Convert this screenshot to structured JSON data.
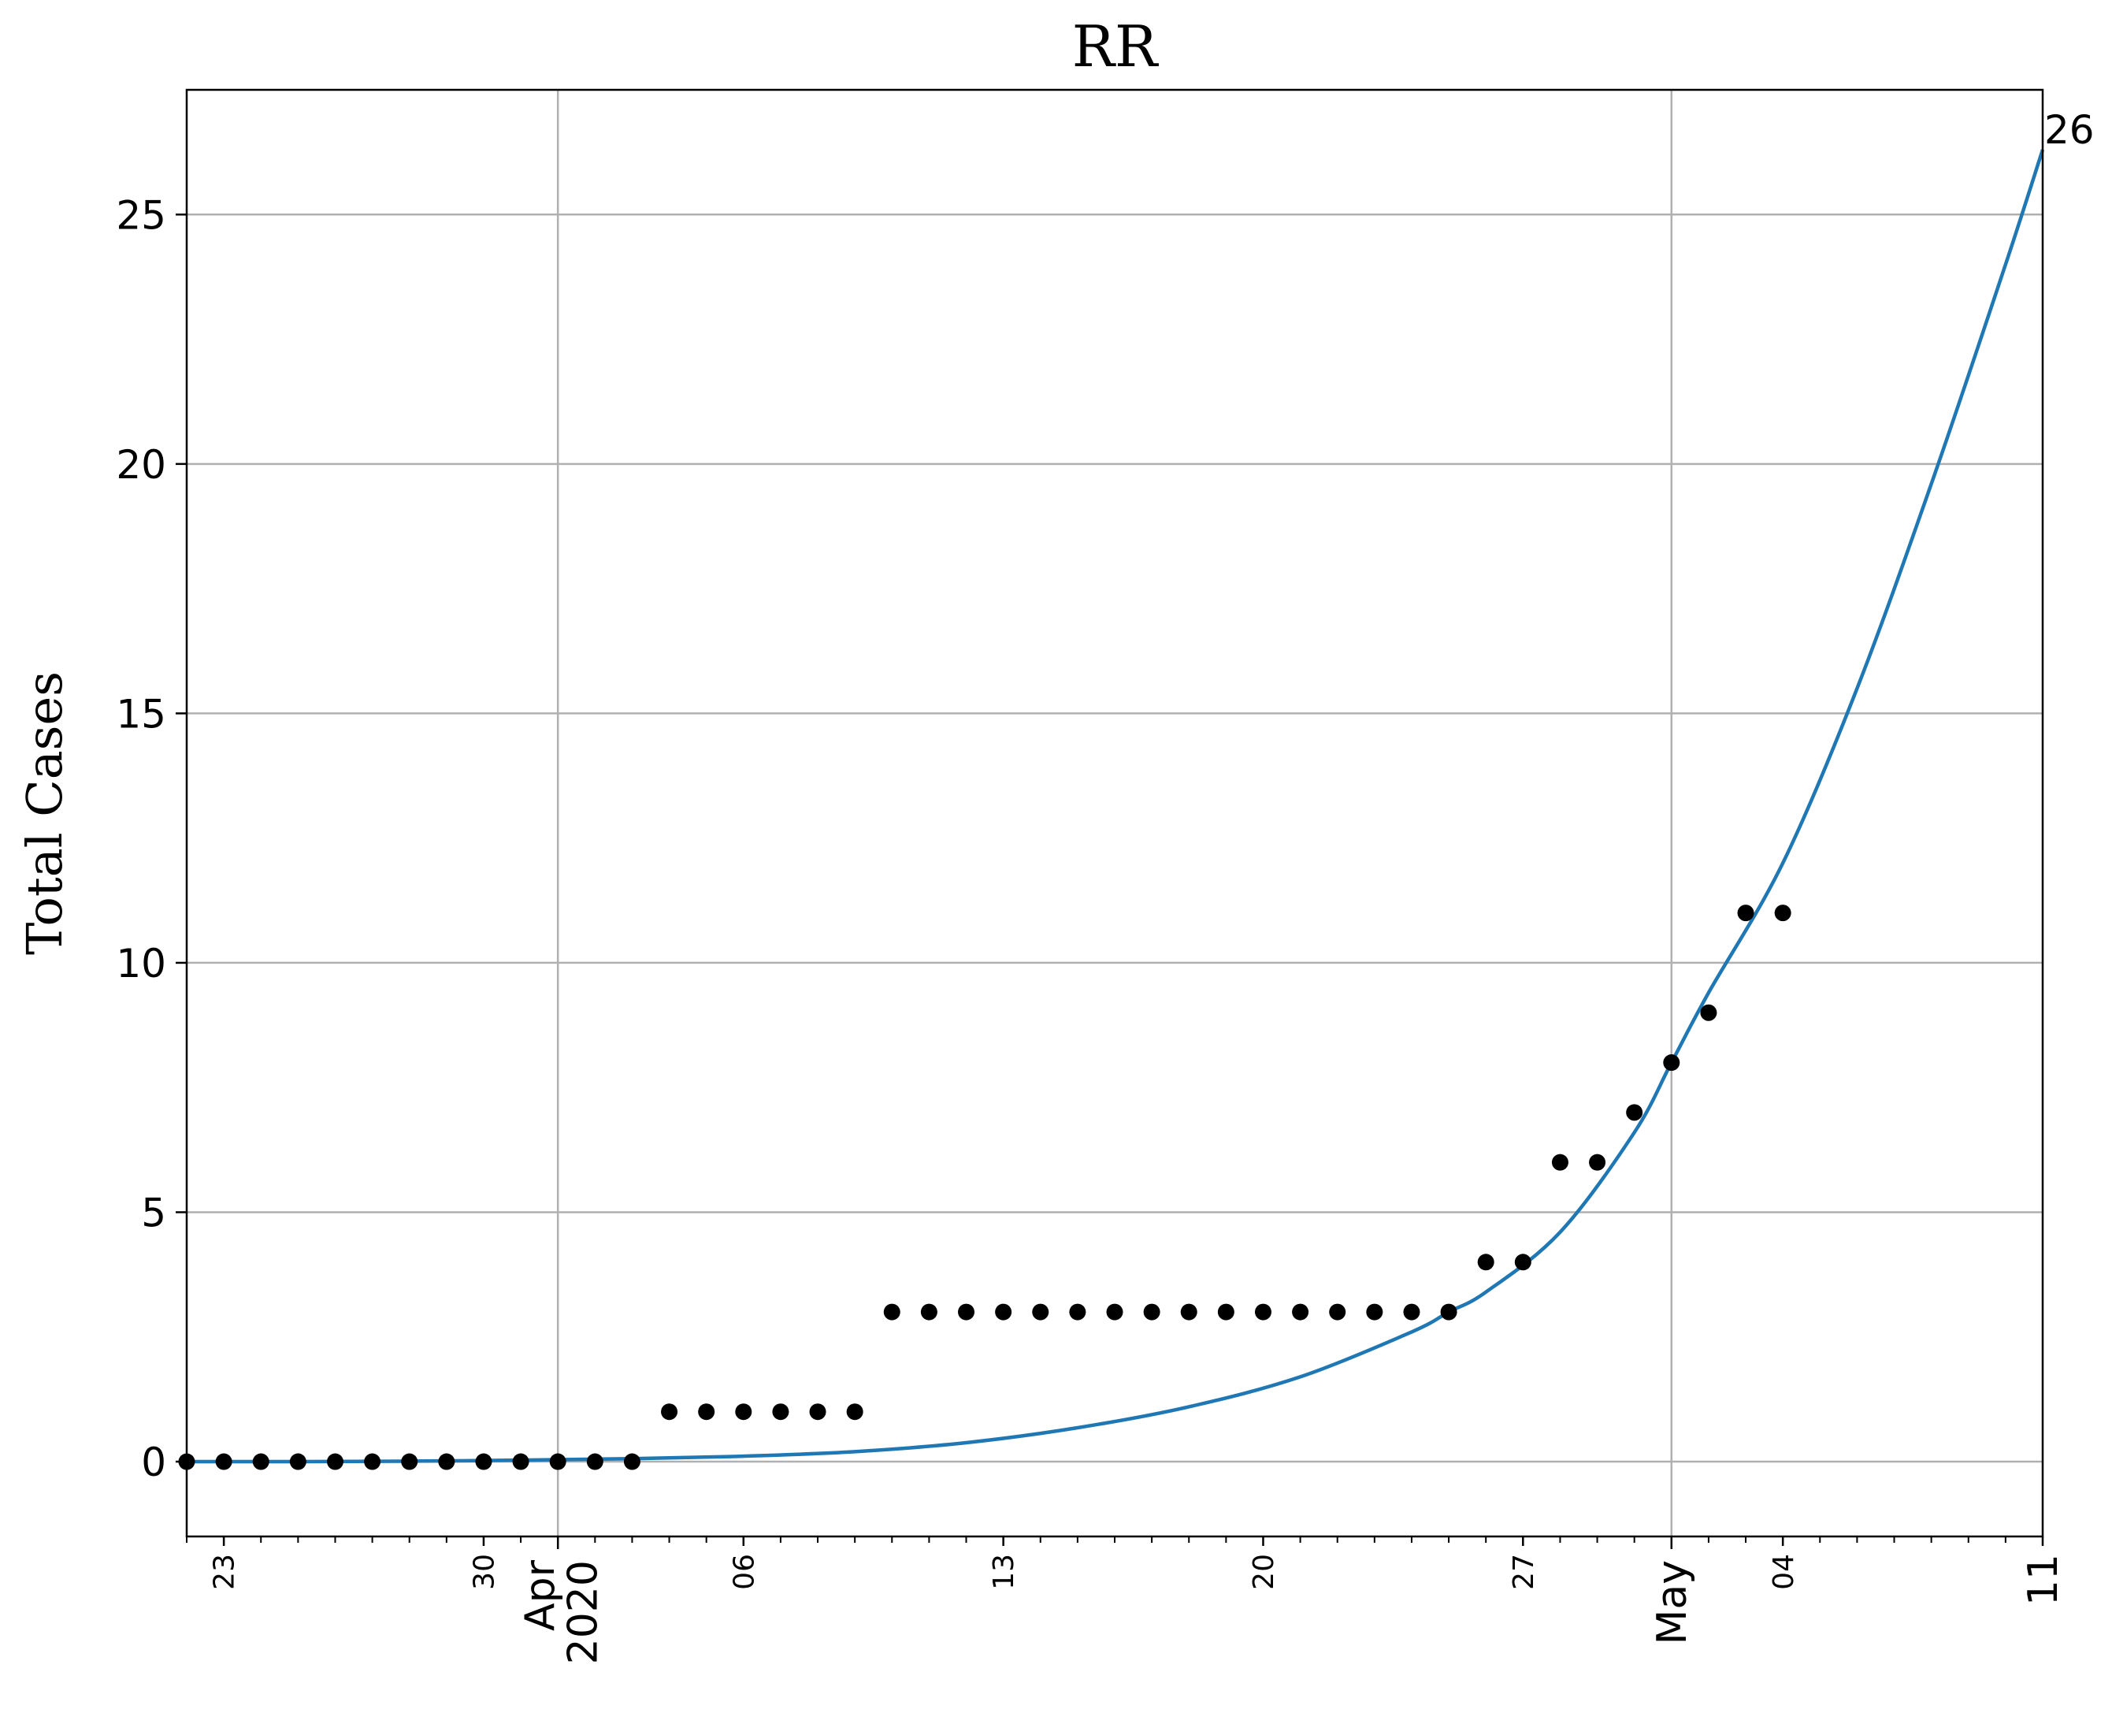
{
  "chart_data": {
    "type": "scatter",
    "title": "RR",
    "xlabel": "",
    "ylabel": "Total Cases",
    "x_type": "date",
    "xlim": [
      "2020-03-22",
      "2020-05-11"
    ],
    "ylim": [
      -1.5,
      27.5
    ],
    "grid": true,
    "yticks": [
      0,
      5,
      10,
      15,
      20,
      25
    ],
    "x_minor_ticks": [
      {
        "date": "2020-03-23",
        "label": "23"
      },
      {
        "date": "2020-03-30",
        "label": "30"
      },
      {
        "date": "2020-04-06",
        "label": "06"
      },
      {
        "date": "2020-04-13",
        "label": "13"
      },
      {
        "date": "2020-04-20",
        "label": "20"
      },
      {
        "date": "2020-04-27",
        "label": "27"
      },
      {
        "date": "2020-05-04",
        "label": "04"
      },
      {
        "date": "2020-05-11",
        "label": "11"
      }
    ],
    "x_major_ticks": [
      {
        "date": "2020-04-01",
        "label": "Apr\n2020"
      },
      {
        "date": "2020-05-01",
        "label": "May"
      }
    ],
    "series": [
      {
        "kind": "points",
        "color": "#000000",
        "x": [
          "2020-03-22",
          "2020-03-23",
          "2020-03-24",
          "2020-03-25",
          "2020-03-26",
          "2020-03-27",
          "2020-03-28",
          "2020-03-29",
          "2020-03-30",
          "2020-03-31",
          "2020-04-01",
          "2020-04-02",
          "2020-04-03",
          "2020-04-04",
          "2020-04-05",
          "2020-04-06",
          "2020-04-07",
          "2020-04-08",
          "2020-04-09",
          "2020-04-10",
          "2020-04-11",
          "2020-04-12",
          "2020-04-13",
          "2020-04-14",
          "2020-04-15",
          "2020-04-16",
          "2020-04-17",
          "2020-04-18",
          "2020-04-19",
          "2020-04-20",
          "2020-04-21",
          "2020-04-22",
          "2020-04-23",
          "2020-04-24",
          "2020-04-25",
          "2020-04-26",
          "2020-04-27",
          "2020-04-28",
          "2020-04-29",
          "2020-04-30",
          "2020-05-01",
          "2020-05-02",
          "2020-05-03",
          "2020-05-04"
        ],
        "y": [
          0,
          0,
          0,
          0,
          0,
          0,
          0,
          0,
          0,
          0,
          0,
          0,
          0,
          1,
          1,
          1,
          1,
          1,
          1,
          3,
          3,
          3,
          3,
          3,
          3,
          3,
          3,
          3,
          3,
          3,
          3,
          3,
          3,
          3,
          3,
          4,
          4,
          6,
          6,
          7,
          8,
          9,
          11,
          11
        ]
      },
      {
        "kind": "fit",
        "color": "#1f77b4",
        "x": [
          "2020-03-22",
          "2020-03-25",
          "2020-03-28",
          "2020-03-31",
          "2020-04-03",
          "2020-04-06",
          "2020-04-09",
          "2020-04-12",
          "2020-04-15",
          "2020-04-18",
          "2020-04-21",
          "2020-04-24",
          "2020-04-25",
          "2020-04-26",
          "2020-04-28",
          "2020-04-30",
          "2020-05-01",
          "2020-05-02",
          "2020-05-04",
          "2020-05-06",
          "2020-05-08",
          "2020-05-10",
          "2020-05-11"
        ],
        "y": [
          0.0,
          0.0,
          0.01,
          0.03,
          0.06,
          0.11,
          0.2,
          0.38,
          0.68,
          1.1,
          1.7,
          2.6,
          3.0,
          3.4,
          4.6,
          6.6,
          8.0,
          9.4,
          12.0,
          15.5,
          19.6,
          24.0,
          26.3
        ]
      }
    ],
    "annotations": [
      {
        "text": "26",
        "x": "2020-05-11",
        "y": 26.3
      }
    ]
  }
}
